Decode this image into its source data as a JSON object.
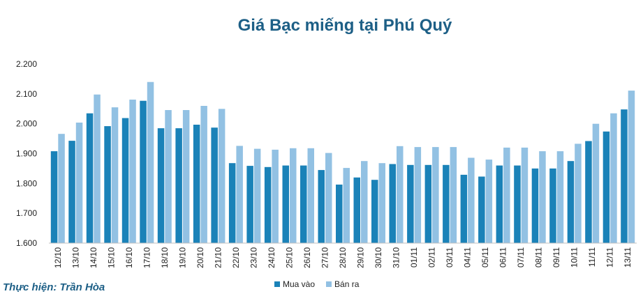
{
  "chart_data": {
    "type": "bar",
    "title": "Giá Bạc miếng tại Phú Quý",
    "categories": [
      "12/10",
      "13/10",
      "14/10",
      "15/10",
      "16/10",
      "17/10",
      "18/10",
      "19/10",
      "20/10",
      "21/10",
      "22/10",
      "23/10",
      "24/10",
      "25/10",
      "26/10",
      "27/10",
      "28/10",
      "29/10",
      "30/10",
      "31/10",
      "01/11",
      "02/11",
      "03/11",
      "04/11",
      "05/11",
      "06/11",
      "07/11",
      "08/11",
      "09/11",
      "10/11",
      "11/11",
      "12/11",
      "13/11"
    ],
    "series": [
      {
        "name": "Mua vào",
        "color": "#1a82b8",
        "values": [
          1.908,
          1.943,
          2.035,
          1.992,
          2.019,
          2.077,
          1.985,
          1.985,
          1.997,
          1.987,
          1.868,
          1.859,
          1.855,
          1.86,
          1.86,
          1.845,
          1.796,
          1.82,
          1.812,
          1.865,
          1.862,
          1.862,
          1.862,
          1.829,
          1.823,
          1.86,
          1.86,
          1.85,
          1.85,
          1.875,
          1.942,
          1.974,
          2.048
        ]
      },
      {
        "name": "Bán ra",
        "color": "#92c1e3",
        "values": [
          1.966,
          2.004,
          2.098,
          2.055,
          2.081,
          2.14,
          2.046,
          2.046,
          2.06,
          2.05,
          1.926,
          1.916,
          1.913,
          1.918,
          1.918,
          1.902,
          1.852,
          1.875,
          1.868,
          1.925,
          1.922,
          1.922,
          1.922,
          1.886,
          1.88,
          1.92,
          1.92,
          1.908,
          1.908,
          1.933,
          2.0,
          2.035,
          2.111
        ]
      }
    ],
    "ylim": [
      1.6,
      2.2
    ],
    "yticks": [
      "1.600",
      "1.700",
      "1.800",
      "1.900",
      "2.000",
      "2.100",
      "2.200"
    ],
    "grid": false,
    "legend_position": "bottom"
  },
  "credit": "Thực hiện: Trần Hòa",
  "colors": {
    "title": "#1d5f86",
    "credit": "#1d5f86"
  }
}
